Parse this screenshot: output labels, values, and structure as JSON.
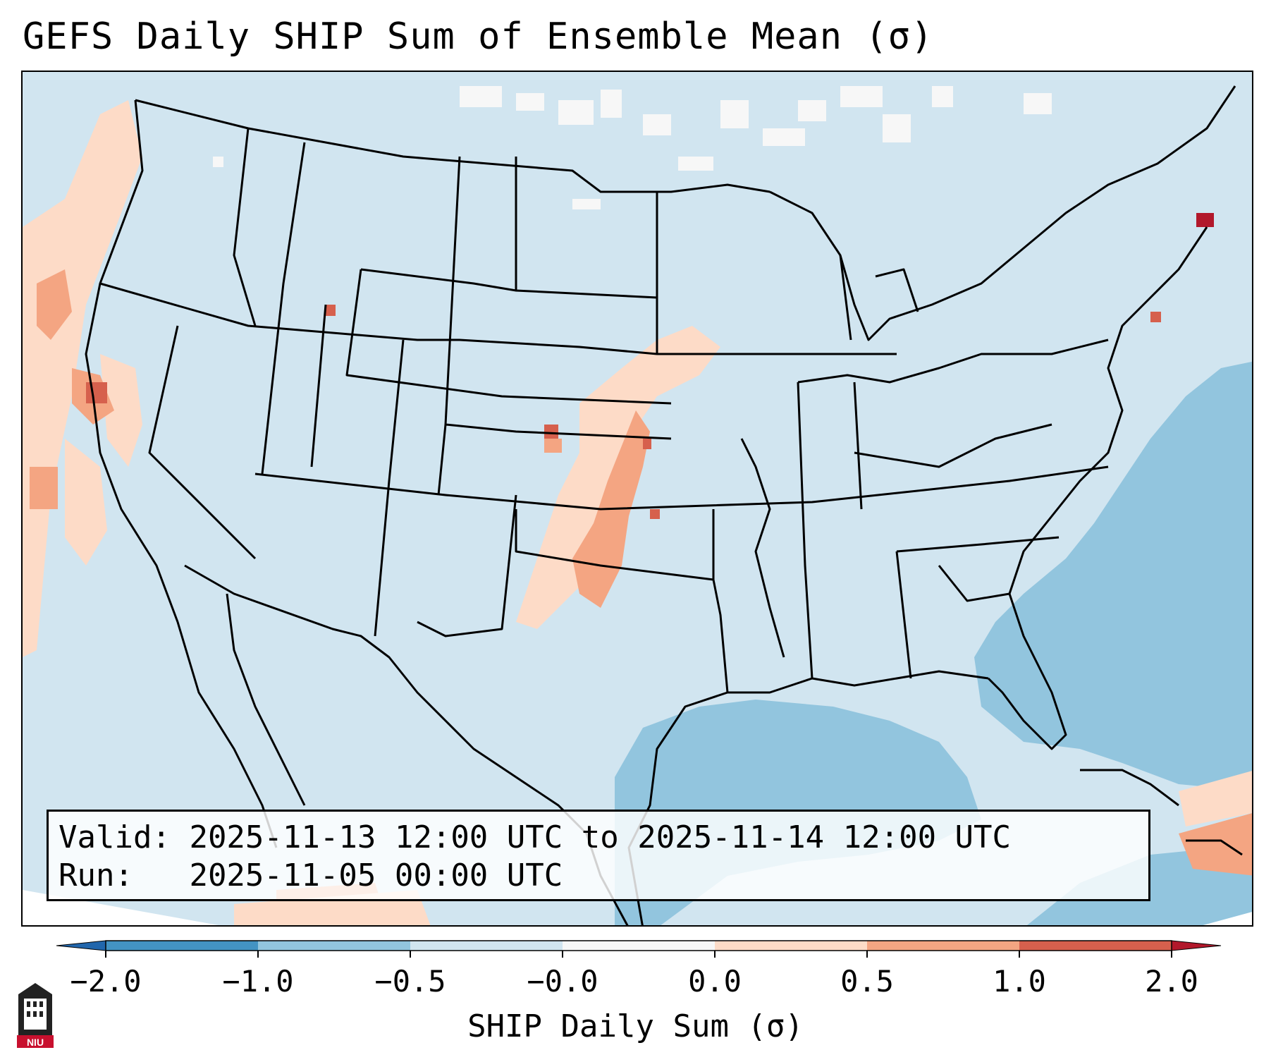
{
  "title": "GEFS Daily SHIP Sum of Ensemble Mean (σ)",
  "info": {
    "valid_label": "Valid:",
    "valid_value": "2025-11-13 12:00 UTC to 2025-11-14 12:00 UTC",
    "run_label": "Run:",
    "run_value": "2025-11-05 00:00 UTC"
  },
  "colorbar": {
    "label": "SHIP Daily Sum (σ)",
    "ticks": [
      "−2.0",
      "−1.0",
      "−0.5",
      "−0.0",
      "0.0",
      "0.5",
      "1.0",
      "2.0"
    ],
    "colors": [
      "#4393c3",
      "#92c5de",
      "#d1e5f0",
      "#f7f7f7",
      "#fddbc7",
      "#f4a582",
      "#d6604d"
    ],
    "under_color": "#2166ac",
    "over_color": "#b2182b"
  },
  "logo": {
    "text": "NIU"
  },
  "map": {
    "background_color": "#d1e5f0",
    "ocean_low_color": "#92c5de",
    "outline_color": "#000000"
  }
}
